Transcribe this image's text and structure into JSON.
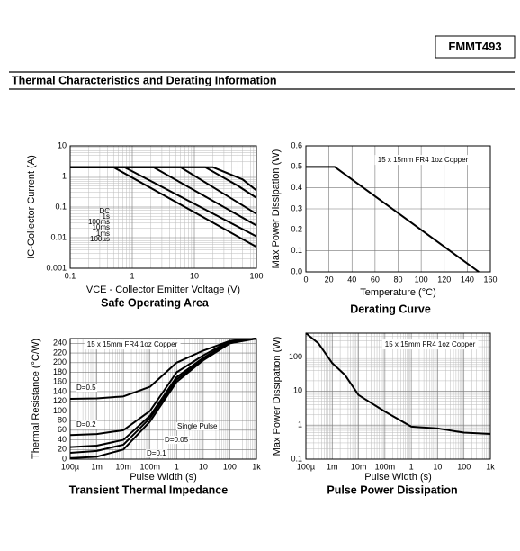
{
  "header": {
    "part": "FMMT493",
    "section": "Thermal Characteristics and Derating Information"
  },
  "chart_data": [
    {
      "type": "line",
      "title": "Safe Operating Area",
      "xlabel": "VCE - Collector Emitter Voltage (V)",
      "ylabel": "IC-Collector Current (A)",
      "xscale": "log",
      "yscale": "log",
      "xlim": [
        0.1,
        100
      ],
      "ylim": [
        0.001,
        10
      ],
      "xticks": [
        0.1,
        1,
        10,
        100
      ],
      "yticks": [
        0.001,
        0.01,
        0.1,
        1,
        10
      ],
      "grid": true,
      "minor_grid": true,
      "series": [
        {
          "name": "DC",
          "color": "#000000",
          "x": [
            0.1,
            0.5,
            100
          ],
          "values": [
            2,
            2,
            0.005
          ]
        },
        {
          "name": "1s",
          "color": "#000000",
          "x": [
            0.1,
            0.75,
            100
          ],
          "values": [
            2,
            2,
            0.011
          ]
        },
        {
          "name": "100ms",
          "color": "#000000",
          "x": [
            0.1,
            2.2,
            100
          ],
          "values": [
            2,
            2,
            0.025
          ]
        },
        {
          "name": "10ms",
          "color": "#000000",
          "x": [
            0.1,
            6,
            100
          ],
          "values": [
            2,
            2,
            0.06
          ]
        },
        {
          "name": "1ms",
          "color": "#000000",
          "x": [
            0.1,
            15,
            50,
            100
          ],
          "values": [
            2,
            2,
            0.5,
            0.2
          ]
        },
        {
          "name": "100µs",
          "color": "#000000",
          "x": [
            0.1,
            20,
            60,
            100
          ],
          "values": [
            2,
            2,
            0.8,
            0.35
          ]
        }
      ]
    },
    {
      "type": "line",
      "title": "Derating Curve",
      "xlabel": "Temperature (°C)",
      "ylabel": "Max Power Dissipation (W)",
      "annotation": "15 x 15mm FR4 1oz Copper",
      "xscale": "linear",
      "yscale": "linear",
      "xlim": [
        0,
        160
      ],
      "ylim": [
        0,
        0.6
      ],
      "xticks": [
        0,
        20,
        40,
        60,
        80,
        100,
        120,
        140,
        160
      ],
      "yticks": [
        {
          "value": 0,
          "label": "0.0"
        },
        0.1,
        0.2,
        0.3,
        0.4,
        0.5,
        0.6
      ],
      "grid": true,
      "minor_grid": false,
      "series": [
        {
          "color": "#000000",
          "x": [
            0,
            25,
            150
          ],
          "values": [
            0.5,
            0.5,
            0
          ]
        }
      ]
    },
    {
      "type": "line",
      "title": "Transient Thermal Impedance",
      "xlabel": "Pulse Width (s)",
      "ylabel": "Thermal Resistance (°C/W)",
      "annotation": "15 x 15mm FR4 1oz Copper",
      "xscale": "log",
      "yscale": "linear",
      "xlim": [
        0.0001,
        1000
      ],
      "ylim": [
        0,
        250
      ],
      "xticks": [
        {
          "value": 0.0001,
          "label": "100µ"
        },
        {
          "value": 0.001,
          "label": "1m"
        },
        {
          "value": 0.01,
          "label": "10m"
        },
        {
          "value": 0.1,
          "label": "100m"
        },
        1,
        10,
        100,
        {
          "value": 1000,
          "label": "1k"
        }
      ],
      "yticks": [
        0,
        20,
        40,
        60,
        80,
        100,
        120,
        140,
        160,
        180,
        200,
        220,
        240
      ],
      "grid": true,
      "minor_grid": true,
      "series": [
        {
          "name": "D=0.5",
          "color": "#000000",
          "x": [
            0.0001,
            0.001,
            0.01,
            0.1,
            1,
            10,
            100,
            1000
          ],
          "values": [
            125,
            126,
            130,
            150,
            200,
            225,
            245,
            250
          ]
        },
        {
          "name": "D=0.2",
          "color": "#000000",
          "x": [
            0.0001,
            0.001,
            0.01,
            0.1,
            1,
            10,
            100,
            1000
          ],
          "values": [
            50,
            52,
            60,
            100,
            180,
            215,
            245,
            250
          ]
        },
        {
          "name": "D=0.1",
          "color": "#000000",
          "x": [
            0.0001,
            0.001,
            0.01,
            0.1,
            1,
            10,
            100,
            1000
          ],
          "values": [
            25,
            28,
            40,
            90,
            170,
            210,
            243,
            250
          ]
        },
        {
          "name": "D=0.05",
          "color": "#000000",
          "x": [
            0.0001,
            0.001,
            0.01,
            0.1,
            1,
            10,
            100,
            1000
          ],
          "values": [
            13,
            17,
            30,
            85,
            165,
            207,
            242,
            250
          ]
        },
        {
          "name": "Single Pulse",
          "color": "#000000",
          "x": [
            0.0001,
            0.001,
            0.01,
            0.1,
            1,
            10,
            100,
            1000
          ],
          "values": [
            2,
            5,
            20,
            78,
            160,
            205,
            240,
            250
          ]
        }
      ]
    },
    {
      "type": "line",
      "title": "Pulse Power Dissipation",
      "xlabel": "Pulse Width (s)",
      "ylabel": "Max Power Dissipation (W)",
      "annotation": "15 x 15mm FR4 1oz Copper",
      "xscale": "log",
      "yscale": "log",
      "xlim": [
        0.0001,
        1000
      ],
      "ylim": [
        0.1,
        500
      ],
      "xticks": [
        {
          "value": 0.0001,
          "label": "100µ"
        },
        {
          "value": 0.001,
          "label": "1m"
        },
        {
          "value": 0.01,
          "label": "10m"
        },
        {
          "value": 0.1,
          "label": "100m"
        },
        1,
        10,
        100,
        {
          "value": 1000,
          "label": "1k"
        }
      ],
      "yticks": [
        0.1,
        1,
        10,
        100
      ],
      "grid": true,
      "minor_grid": true,
      "series": [
        {
          "color": "#000000",
          "x": [
            0.0001,
            0.0003,
            0.001,
            0.003,
            0.01,
            0.1,
            1,
            10,
            100,
            1000
          ],
          "values": [
            500,
            250,
            66,
            30,
            7.6,
            2.5,
            0.9,
            0.8,
            0.6,
            0.55
          ]
        }
      ]
    }
  ]
}
